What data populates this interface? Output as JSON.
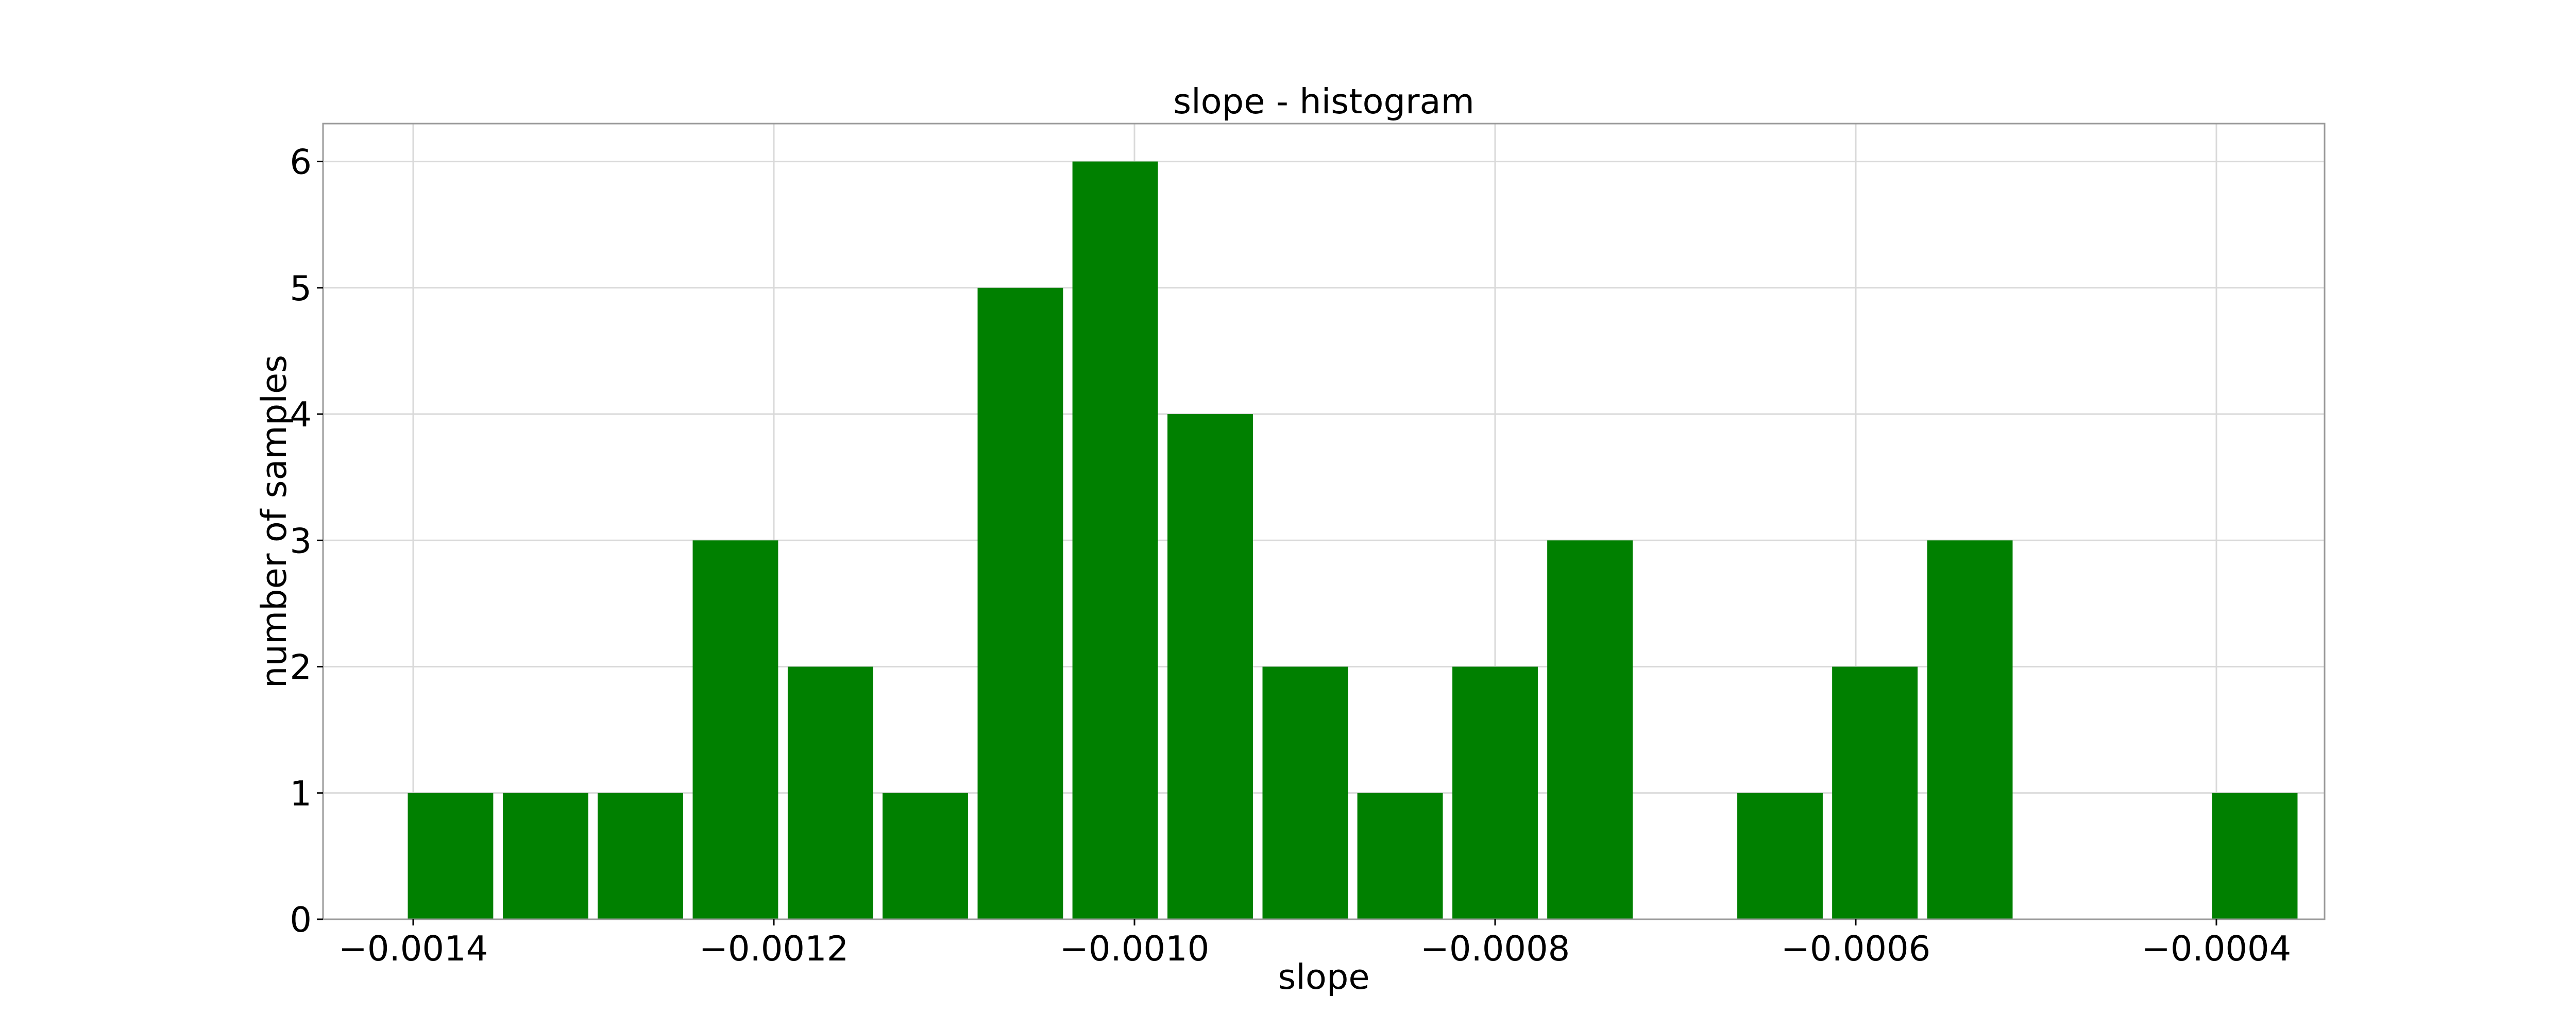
{
  "chart_data": {
    "type": "bar",
    "title": "slope - histogram",
    "xlabel": "slope",
    "ylabel": "number of samples",
    "bar_color": "#008000",
    "grid": true,
    "xlim": [
      -0.00145,
      -0.00034
    ],
    "ylim": [
      0,
      6.3
    ],
    "bin_width": 5.266e-05,
    "x_ticks": [
      {
        "value": -0.0014,
        "label": "−0.0014"
      },
      {
        "value": -0.0012,
        "label": "−0.0012"
      },
      {
        "value": -0.001,
        "label": "−0.0010"
      },
      {
        "value": -0.0008,
        "label": "−0.0008"
      },
      {
        "value": -0.0006,
        "label": "−0.0006"
      },
      {
        "value": -0.0004,
        "label": "−0.0004"
      }
    ],
    "y_ticks": [
      {
        "value": 0,
        "label": "0"
      },
      {
        "value": 1,
        "label": "1"
      },
      {
        "value": 2,
        "label": "2"
      },
      {
        "value": 3,
        "label": "3"
      },
      {
        "value": 4,
        "label": "4"
      },
      {
        "value": 5,
        "label": "5"
      },
      {
        "value": 6,
        "label": "6"
      }
    ],
    "bins": [
      {
        "x": -0.001403,
        "count": 1
      },
      {
        "x": -0.0013503,
        "count": 1
      },
      {
        "x": -0.0012977,
        "count": 1
      },
      {
        "x": -0.001245,
        "count": 3
      },
      {
        "x": -0.0011923,
        "count": 2
      },
      {
        "x": -0.0011397,
        "count": 1
      },
      {
        "x": -0.001087,
        "count": 5
      },
      {
        "x": -0.0010344,
        "count": 6
      },
      {
        "x": -0.0009817,
        "count": 4
      },
      {
        "x": -0.000929,
        "count": 2
      },
      {
        "x": -0.0008764,
        "count": 1
      },
      {
        "x": -0.0008237,
        "count": 2
      },
      {
        "x": -0.0007711,
        "count": 3
      },
      {
        "x": -0.0007184,
        "count": 0
      },
      {
        "x": -0.0006657,
        "count": 1
      },
      {
        "x": -0.0006131,
        "count": 2
      },
      {
        "x": -0.0005604,
        "count": 3
      },
      {
        "x": -0.0005078,
        "count": 0
      },
      {
        "x": -0.0004551,
        "count": 0
      },
      {
        "x": -0.0004024,
        "count": 1
      }
    ]
  }
}
